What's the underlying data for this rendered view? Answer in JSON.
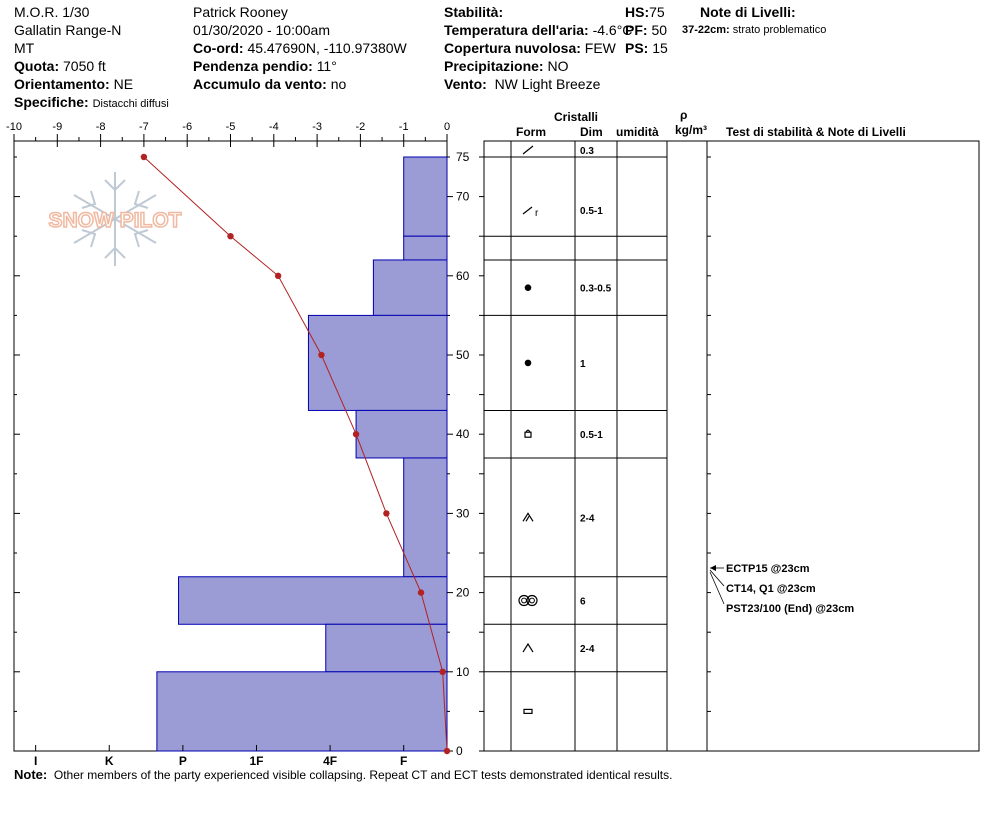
{
  "header": {
    "col1": {
      "line1": "M.O.R. 1/30",
      "line2": "Gallatin Range-N",
      "line3": "MT",
      "elev_label": "Quota:",
      "elev_value": "7050 ft",
      "aspect_label": "Orientamento:",
      "aspect_value": "NE",
      "specifics_label": "Specifiche:",
      "specifics_value": "Distacchi diffusi"
    },
    "col2": {
      "observer": "Patrick Rooney",
      "datetime": "01/30/2020 - 10:00am",
      "coord_label": "Co-ord:",
      "coord_value": "45.47690N, -110.97380W",
      "slope_label": "Pendenza pendio:",
      "slope_value": "11°",
      "wind_load_label": "Accumulo da vento:",
      "wind_load_value": "no"
    },
    "col3": {
      "stability_label": "Stabilità:",
      "air_temp_label": "Temperatura dell'aria:",
      "air_temp_value": "-4.6°C",
      "sky_label": "Copertura nuvolosa:",
      "sky_value": "FEW",
      "precip_label": "Precipitazione:",
      "precip_value": "NO",
      "wind_label": "Vento:",
      "wind_value": "NW Light Breeze"
    },
    "col4": {
      "hs_label": "HS:",
      "hs_value": "75",
      "pen_label": "PF:",
      "pen_value": "50",
      "ps_label": "PS:",
      "ps_value": "15"
    },
    "col5": {
      "notes_title": "Note di Livelli:",
      "note_depth": "37-22cm:",
      "note_text": "strato problematico"
    }
  },
  "logo_text": "SNOW PILOT",
  "table_headers": {
    "cristalli": "Cristalli",
    "form": "Form",
    "dim": "Dim",
    "umidita": "umidità",
    "rho": "ρ",
    "density_unit": "kg/m³",
    "stability_notes": "Test di stabilità & Note di Livelli"
  },
  "stability_tests": [
    "ECTP15 @23cm",
    "CT14, Q1 @23cm",
    "PST23/100 (End) @23cm"
  ],
  "note_label": "Note:",
  "note_text": "Other members of the party experienced visible collapsing. Repeat CT and ECT tests demonstrated identical results.",
  "colors": {
    "hardness_fill": "#9b9bd6",
    "hardness_stroke": "#0000b0",
    "temp_line": "#b22222"
  },
  "chart_data": {
    "type": "snow-profile",
    "y_axis": {
      "label": "",
      "range": [
        0,
        75
      ],
      "ticks": [
        0,
        10,
        20,
        30,
        40,
        50,
        60,
        70,
        75
      ]
    },
    "temp_axis": {
      "range": [
        -10,
        0
      ],
      "ticks": [
        -10,
        -9,
        -8,
        -7,
        -6,
        -5,
        -4,
        -3,
        -2,
        -1,
        0
      ]
    },
    "hardness_axis": {
      "ticks": [
        "I",
        "K",
        "P",
        "1F",
        "4F",
        "F"
      ]
    },
    "layers": [
      {
        "top": 75,
        "bottom": 65,
        "hardness": 1.0,
        "form": "slash",
        "size": "0.3"
      },
      {
        "top": 65,
        "bottom": 62,
        "hardness": 1.0,
        "form": "slash-r",
        "size": "0.5-1"
      },
      {
        "top": 62,
        "bottom": 55,
        "hardness": 1.7,
        "form": "dot",
        "size": "0.3-0.5"
      },
      {
        "top": 55,
        "bottom": 43,
        "hardness": 3.2,
        "form": "dot",
        "size": "1"
      },
      {
        "top": 43,
        "bottom": 37,
        "hardness": 2.1,
        "form": "faceted",
        "size": "0.5-1"
      },
      {
        "top": 37,
        "bottom": 22,
        "hardness": 1.0,
        "form": "depth-hoar",
        "size": "2-4"
      },
      {
        "top": 22,
        "bottom": 16,
        "hardness": 6.2,
        "form": "melt-clusters",
        "size": "6"
      },
      {
        "top": 16,
        "bottom": 10,
        "hardness": 2.8,
        "form": "cup",
        "size": "2-4"
      },
      {
        "top": 10,
        "bottom": 0,
        "hardness": 6.7,
        "form": "ice",
        "size": ""
      }
    ],
    "temperature": [
      {
        "depth": 75,
        "temp": -7.0
      },
      {
        "depth": 65,
        "temp": -5.0
      },
      {
        "depth": 60,
        "temp": -3.9
      },
      {
        "depth": 50,
        "temp": -2.9
      },
      {
        "depth": 40,
        "temp": -2.1
      },
      {
        "depth": 30,
        "temp": -1.4
      },
      {
        "depth": 20,
        "temp": -0.6
      },
      {
        "depth": 10,
        "temp": -0.1
      },
      {
        "depth": 0,
        "temp": 0.0
      }
    ]
  }
}
